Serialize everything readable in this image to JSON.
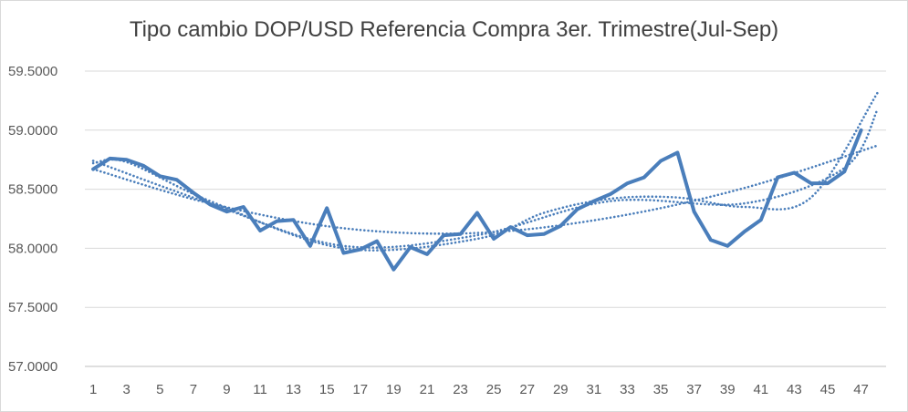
{
  "colors": {
    "series": "#4a7ebb",
    "grid": "#d9d9d9",
    "axis": "#bfbfbf",
    "text": "#595959"
  },
  "chart_data": {
    "type": "line",
    "title": "Tipo cambio DOP/USD Referencia Compra 3er. Trimestre(Jul-Sep)",
    "xlabel": "",
    "ylabel": "",
    "ylim": [
      57.0,
      59.5
    ],
    "y_ticks": [
      "57.0000",
      "57.5000",
      "58.0000",
      "58.5000",
      "59.0000",
      "59.5000"
    ],
    "x_ticks": [
      "1",
      "3",
      "5",
      "7",
      "9",
      "11",
      "13",
      "15",
      "17",
      "19",
      "21",
      "23",
      "25",
      "27",
      "29",
      "31",
      "33",
      "35",
      "37",
      "39",
      "41",
      "43",
      "45",
      "47"
    ],
    "grid": true,
    "legend": "none",
    "series": [
      {
        "values": [
          58.67,
          58.76,
          58.75,
          58.7,
          58.61,
          58.58,
          58.47,
          58.37,
          58.31,
          58.35,
          58.15,
          58.23,
          58.24,
          58.02,
          58.34,
          57.96,
          57.99,
          58.06,
          57.82,
          58.01,
          57.95,
          58.11,
          58.12,
          58.3,
          58.08,
          58.18,
          58.11,
          58.12,
          58.19,
          58.33,
          58.4,
          58.46,
          58.55,
          58.6,
          58.74,
          58.81,
          58.31,
          58.07,
          58.02,
          58.14,
          58.24,
          58.6,
          58.64,
          58.55,
          58.55,
          58.65,
          59.0
        ]
      }
    ],
    "trendlines": [
      {
        "type": "polynomial-2",
        "style": "dotted",
        "x": [
          1,
          8,
          16,
          24,
          32,
          40,
          48
        ],
        "values": [
          58.67,
          58.38,
          58.17,
          58.13,
          58.26,
          58.51,
          58.87
        ]
      },
      {
        "type": "polynomial-4",
        "style": "dotted",
        "x": [
          1,
          8,
          16,
          24,
          32,
          40,
          46,
          48
        ],
        "values": [
          58.74,
          58.38,
          58.02,
          58.11,
          58.4,
          58.38,
          58.68,
          59.18
        ]
      },
      {
        "type": "polynomial-6",
        "style": "dotted",
        "x": [
          1,
          3,
          8,
          16,
          24,
          28,
          32,
          36,
          40,
          44,
          48
        ],
        "values": [
          58.72,
          58.73,
          58.4,
          58.0,
          58.08,
          58.3,
          58.42,
          58.43,
          58.35,
          58.43,
          59.32
        ]
      }
    ]
  }
}
